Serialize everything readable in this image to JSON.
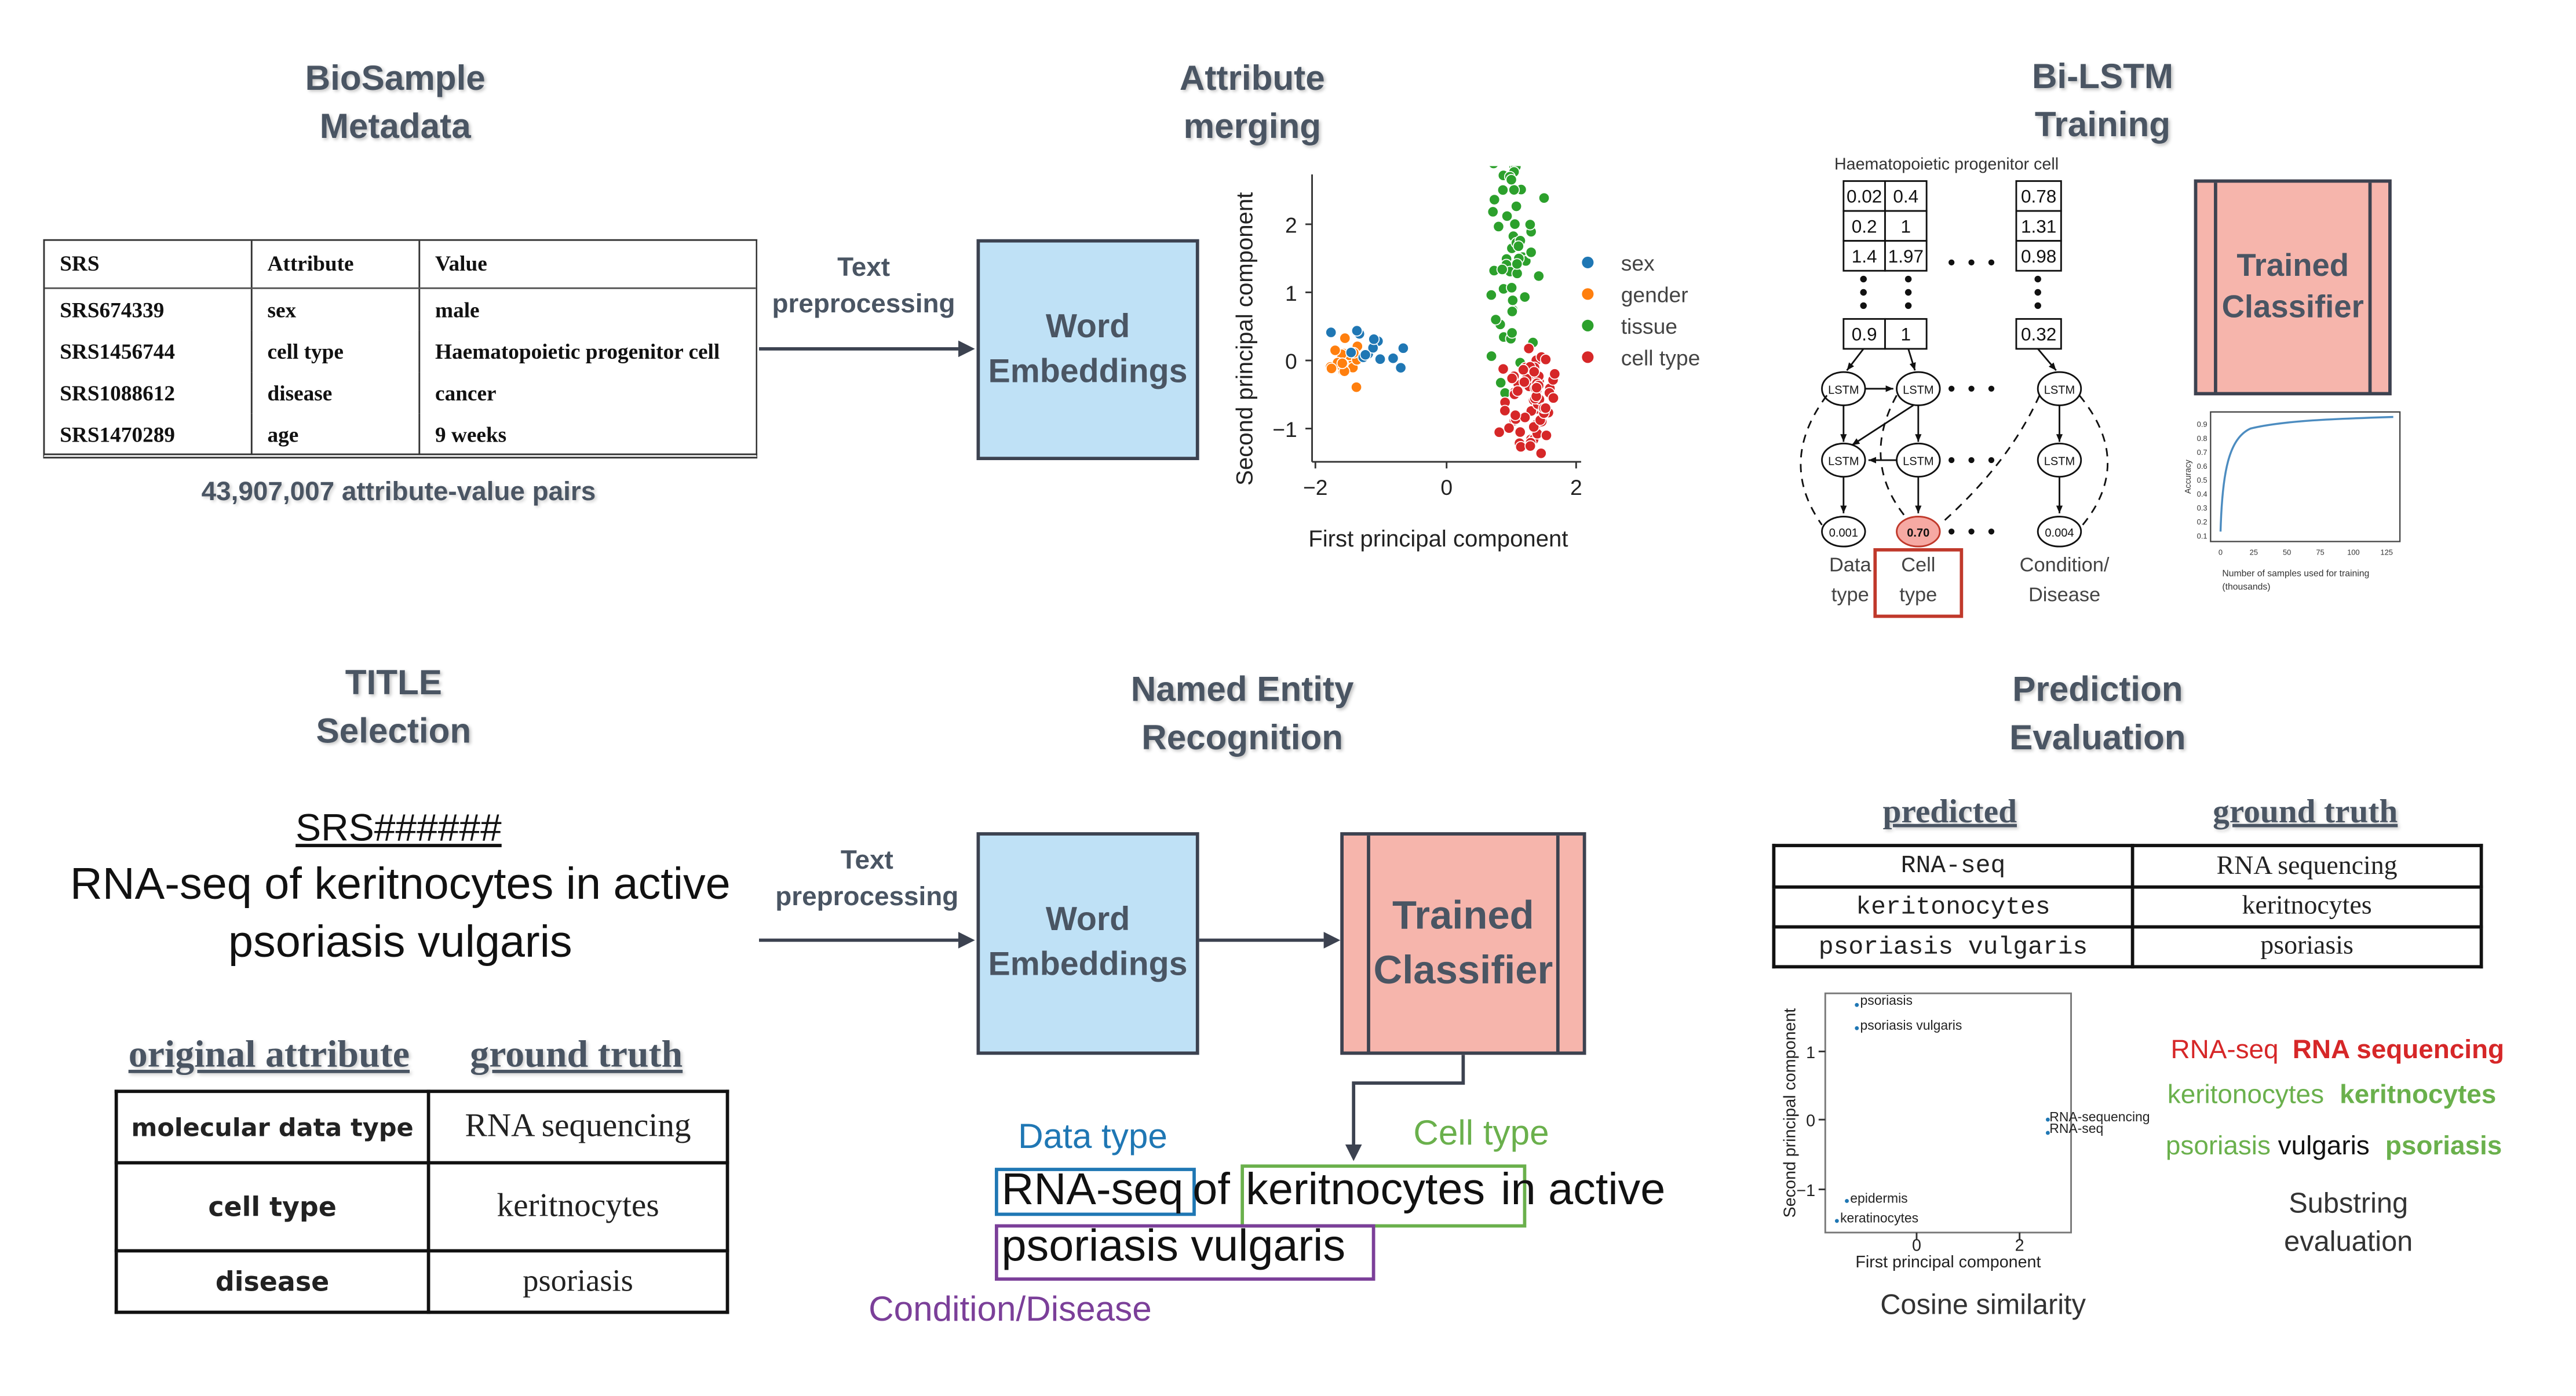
{
  "sections": {
    "biosample": {
      "title_line1": "BioSample",
      "title_line2": "Metadata"
    },
    "merging": {
      "title_line1": "Attribute",
      "title_line2": "merging"
    },
    "bilstm": {
      "title_line1": "Bi-LSTM",
      "title_line2": "Training"
    },
    "title_sel": {
      "title_line1": "TITLE",
      "title_line2": "Selection"
    },
    "ner": {
      "title_line1": "Named Entity",
      "title_line2": "Recognition"
    },
    "prediction": {
      "title_line1": "Prediction",
      "title_line2": "Evaluation"
    }
  },
  "metadata_table": {
    "headers": [
      "SRS",
      "Attribute",
      "Value"
    ],
    "rows": [
      [
        "SRS674339",
        "sex",
        "male"
      ],
      [
        "SRS1456744",
        "cell type",
        "Haematopoietic progenitor cell"
      ],
      [
        "SRS1088612",
        "disease",
        "cancer"
      ],
      [
        "SRS1470289",
        "age",
        "9 weeks"
      ]
    ],
    "caption": "43,907,007 attribute-value pairs"
  },
  "labels": {
    "text_preprocessing_1": {
      "line1": "Text",
      "line2": "preprocessing"
    },
    "text_preprocessing_2": {
      "line1": "Text",
      "line2": "preprocessing"
    },
    "word_embeddings_1": {
      "line1": "Word",
      "line2": "Embeddings"
    },
    "word_embeddings_2": {
      "line1": "Word",
      "line2": "Embeddings"
    },
    "trained_classifier_1": {
      "line1": "Trained",
      "line2": "Classifier"
    },
    "trained_classifier_2": {
      "line1": "Trained",
      "line2": "Classifier"
    }
  },
  "pca_chart": {
    "xlabel": "First principal component",
    "ylabel": "Second principal component",
    "xticks": [
      "−2",
      "0",
      "2"
    ],
    "yticks": [
      "2",
      "1",
      "0",
      "−1"
    ],
    "legend": [
      {
        "name": "sex",
        "color": "#1f77b4"
      },
      {
        "name": "gender",
        "color": "#ff7f0e"
      },
      {
        "name": "tissue",
        "color": "#2ca02c"
      },
      {
        "name": "cell type",
        "color": "#d62728"
      }
    ]
  },
  "lstm": {
    "caption": "Haematopoietic progenitor cell",
    "vec1": [
      [
        "0.02",
        "0.4"
      ],
      [
        "0.2",
        "1"
      ],
      [
        "1.4",
        "1.97"
      ]
    ],
    "vec1_end": [
      "0.9",
      "1"
    ],
    "vec2": [
      "0.78",
      "1.31",
      "0.98"
    ],
    "vec2_end": "0.32",
    "cell_label": "LSTM",
    "outputs": [
      "0.001",
      "0.70",
      "0.004"
    ],
    "out_labels": [
      {
        "line1": "Data",
        "line2": "type"
      },
      {
        "line1": "Cell",
        "line2": "type"
      },
      {
        "line1": "Condition/",
        "line2": "Disease"
      }
    ]
  },
  "accuracy_chart": {
    "ylabel": "Accuracy",
    "xlabel_line1": "Number of samples used for training",
    "xlabel_line2": "(thousands)",
    "xticks": [
      "0",
      "25",
      "50",
      "75",
      "100",
      "125"
    ],
    "yticks": [
      "0.9",
      "0.8",
      "0.7",
      "0.6",
      "0.5",
      "0.4",
      "0.3",
      "0.2",
      "0.1"
    ],
    "color": "#4c8cc0"
  },
  "title_selection": {
    "srs": "SRS######",
    "line1": "RNA-seq of keritnocytes in active",
    "line2": "psoriasis vulgaris",
    "headers": [
      "original attribute",
      "ground truth"
    ],
    "rows": [
      [
        "molecular data type",
        "RNA sequencing"
      ],
      [
        "cell type",
        "keritnocytes"
      ],
      [
        "disease",
        "psoriasis"
      ]
    ]
  },
  "ner_text": {
    "data_type_label": "Data type",
    "cell_type_label": "Cell type",
    "condition_label": "Condition/Disease",
    "seg_rnaseq": "RNA-seq",
    "seg_of": "of",
    "seg_keritnocytes": "keritnocytes",
    "seg_in_active": "in active",
    "seg_psoriasis": "psoriasis vulgaris",
    "colors": {
      "data": "#1f77b4",
      "cell": "#6ab04c",
      "cond": "#7b3f99"
    }
  },
  "prediction": {
    "headers": [
      "predicted",
      "ground truth"
    ],
    "rows": [
      [
        "RNA-seq",
        "RNA sequencing"
      ],
      [
        "keritonocytes",
        "keritnocytes"
      ],
      [
        "psoriasis vulgaris",
        "psoriasis"
      ]
    ],
    "cos_chart": {
      "xlabel": "First principal component",
      "ylabel": "Second principal component",
      "xticks": [
        "0",
        "2"
      ],
      "yticks": [
        "1",
        "0",
        "−1"
      ],
      "points": [
        "psoriasis",
        "psoriasis vulgaris",
        "RNA-sequencing",
        "RNA-seq",
        "epidermis",
        "keratinocytes"
      ]
    },
    "cos_caption": "Cosine similarity",
    "substring": [
      {
        "pred": "RNA-seq",
        "gt": "RNA sequencing",
        "pred_color": "#d62728",
        "gt_color": "#d62728"
      },
      {
        "pred": "keritonocytes",
        "gt": "keritnocytes",
        "pred_color": "#6ab04c",
        "gt_color": "#6ab04c"
      },
      {
        "pred_a": "psoriasis",
        "pred_b": "vulgaris",
        "gt": "psoriasis",
        "pred_color": "#6ab04c",
        "gt_color": "#6ab04c"
      }
    ],
    "substring_caption": {
      "line1": "Substring",
      "line2": "evaluation"
    }
  }
}
